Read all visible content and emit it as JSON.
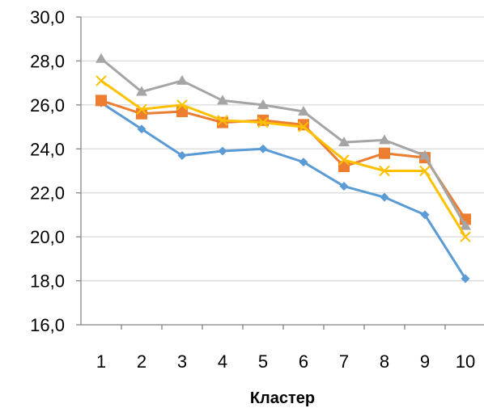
{
  "chart_data": {
    "type": "line",
    "title": "",
    "xlabel": "Кластер",
    "ylabel": "",
    "categories": [
      "1",
      "2",
      "3",
      "4",
      "5",
      "6",
      "7",
      "8",
      "9",
      "10"
    ],
    "ylim": [
      16.0,
      30.0
    ],
    "yticks": [
      "16,0",
      "18,0",
      "20,0",
      "22,0",
      "24,0",
      "26,0",
      "28,0",
      "30,0"
    ],
    "grid": "horizontal",
    "legend": "none",
    "series": [
      {
        "color": "#5B9BD5",
        "marker": "diamond",
        "values": [
          26.1,
          24.9,
          23.7,
          23.9,
          24.0,
          23.4,
          22.3,
          21.8,
          21.0,
          18.1
        ]
      },
      {
        "color": "#ED7D31",
        "marker": "square",
        "values": [
          26.2,
          25.6,
          25.7,
          25.2,
          25.3,
          25.1,
          23.2,
          23.8,
          23.6,
          20.8
        ]
      },
      {
        "color": "#A5A5A5",
        "marker": "triangle",
        "values": [
          28.1,
          26.6,
          27.1,
          26.2,
          26.0,
          25.7,
          24.3,
          24.4,
          23.7,
          20.5
        ]
      },
      {
        "color": "#FFC000",
        "marker": "x",
        "values": [
          27.1,
          25.8,
          26.0,
          25.3,
          25.2,
          25.0,
          23.5,
          23.0,
          23.0,
          20.0
        ]
      }
    ]
  }
}
